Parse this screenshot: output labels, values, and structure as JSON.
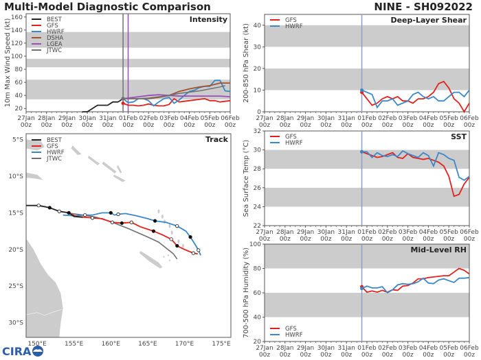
{
  "header": {
    "title": "Multi-Model Diagnostic Comparison",
    "storm": "NINE - SH092022",
    "logo_text": "CIRA"
  },
  "colors": {
    "BEST": "#222222",
    "GFS": "#e3201b",
    "HWRF": "#3a87c8",
    "DSHA": "#a0522d",
    "LGEA": "#9b4fb5",
    "JTWC": "#707070",
    "band": "#cccccc",
    "init_line": "#8aa0c8",
    "land": "#cccccc"
  },
  "x_axis": {
    "days": 10,
    "tick_labels": [
      "27Jan\n00z",
      "28Jan\n00z",
      "29Jan\n00z",
      "30Jan\n00z",
      "31Jan\n00z",
      "01Feb\n00z",
      "02Feb\n00z",
      "03Feb\n00z",
      "04Feb\n00z",
      "05Feb\n00z",
      "06Feb\n00z"
    ]
  },
  "chart_data": [
    {
      "id": "intensity",
      "type": "line",
      "title": "Intensity",
      "ylabel": "10m Max Wind Speed (kt)",
      "xlabel": "",
      "ylim": [
        15,
        165
      ],
      "yticks": [
        20,
        40,
        60,
        80,
        100,
        120,
        140,
        160
      ],
      "bands": [
        [
          34,
          64
        ],
        [
          83,
          96
        ],
        [
          113,
          137
        ]
      ],
      "legend": "top-left",
      "vlines": [
        {
          "x": 4.75,
          "color": "JTWC"
        },
        {
          "x": 5.0,
          "color": "LGEA"
        }
      ],
      "series": [
        {
          "name": "BEST",
          "x": [
            2.75,
            3.0,
            3.25,
            3.5,
            3.75,
            4.0,
            4.25,
            4.5,
            4.75
          ],
          "y": [
            15,
            15,
            20,
            25,
            25,
            25,
            30,
            30,
            35
          ]
        },
        {
          "name": "GFS",
          "x": [
            4.75,
            5.0,
            5.25,
            5.5,
            5.75,
            6.0,
            6.25,
            6.5,
            6.75,
            7.0,
            7.25,
            7.5,
            7.75,
            8.0,
            8.25,
            8.5,
            8.75,
            9.0,
            9.25,
            9.5,
            9.75,
            10.0
          ],
          "y": [
            28,
            25,
            25,
            24,
            25,
            27,
            25,
            24,
            24,
            26,
            35,
            30,
            31,
            32,
            33,
            34,
            35,
            32,
            32,
            30,
            31,
            32
          ]
        },
        {
          "name": "HWRF",
          "x": [
            4.75,
            5.0,
            5.25,
            5.5,
            5.75,
            6.0,
            6.25,
            6.5,
            6.75,
            7.0,
            7.25,
            7.5,
            7.75,
            8.0,
            8.25,
            8.5,
            8.75,
            9.0,
            9.25,
            9.5,
            9.75,
            10.0
          ],
          "y": [
            35,
            29,
            30,
            35,
            35,
            32,
            24,
            30,
            35,
            37,
            28,
            33,
            40,
            46,
            48,
            52,
            54,
            54,
            63,
            63,
            47,
            46
          ]
        },
        {
          "name": "DSHA",
          "x": [
            4.75,
            5.5,
            6.0,
            6.5,
            7.0,
            7.5,
            8.0,
            8.5,
            9.0,
            9.5,
            10.0
          ],
          "y": [
            35,
            35,
            35,
            37,
            40,
            46,
            50,
            53,
            55,
            59,
            59
          ]
        },
        {
          "name": "LGEA",
          "x": [
            4.75,
            5.5,
            6.0,
            6.5,
            7.0,
            7.5,
            8.0,
            8.5,
            9.0,
            9.5,
            10.0
          ],
          "y": [
            35,
            38,
            40,
            41,
            40,
            39,
            39,
            39,
            39,
            39,
            38
          ]
        },
        {
          "name": "JTWC",
          "x": [
            4.75,
            5.0,
            5.5,
            6.0,
            6.5,
            7.0,
            7.5,
            8.0,
            8.5,
            9.0,
            9.5,
            9.75
          ],
          "y": [
            35,
            35,
            35,
            36,
            38,
            40,
            43,
            45,
            47,
            50,
            53,
            55
          ]
        }
      ]
    },
    {
      "id": "shear",
      "type": "line",
      "title": "Deep-Layer Shear",
      "ylabel": "200-850 hPa Shear (kt)",
      "xlabel": "",
      "ylim": [
        0,
        45
      ],
      "yticks": [
        0,
        10,
        20,
        30,
        40
      ],
      "bands": [
        [
          10,
          20
        ],
        [
          30,
          40
        ]
      ],
      "legend": "top-left",
      "vlines": [
        {
          "x": 4.75,
          "color": "init_line"
        }
      ],
      "series": [
        {
          "name": "GFS",
          "x": [
            4.75,
            5.0,
            5.25,
            5.5,
            5.75,
            6.0,
            6.25,
            6.5,
            6.75,
            7.0,
            7.25,
            7.5,
            7.75,
            8.0,
            8.25,
            8.5,
            8.75,
            9.0,
            9.25,
            9.5,
            9.75,
            10.0
          ],
          "y": [
            9,
            6,
            3,
            4,
            6,
            7,
            6,
            7,
            5,
            5,
            4,
            6,
            6,
            7,
            9,
            13,
            14,
            11,
            6,
            4,
            0,
            4
          ]
        },
        {
          "name": "HWRF",
          "x": [
            4.75,
            5.0,
            5.25,
            5.5,
            5.75,
            6.0,
            6.25,
            6.5,
            6.75,
            7.0,
            7.25,
            7.5,
            7.75,
            8.0,
            8.25,
            8.5,
            8.75,
            9.0,
            9.25,
            9.5,
            9.75,
            10.0
          ],
          "y": [
            10,
            9,
            8,
            2,
            5,
            5,
            6,
            3,
            4,
            5,
            8,
            9,
            7,
            6,
            7,
            5,
            5,
            7,
            9,
            9,
            7,
            10
          ]
        }
      ]
    },
    {
      "id": "sst",
      "type": "line",
      "title": "SST",
      "ylabel": "Sea Surface Temp (°C)",
      "xlabel": "",
      "ylim": [
        22,
        32
      ],
      "yticks": [
        22,
        24,
        26,
        28,
        30,
        32
      ],
      "bands": [
        [
          24,
          26
        ],
        [
          28,
          30
        ],
        [
          32,
          33
        ]
      ],
      "legend": "top-left",
      "vlines": [
        {
          "x": 4.75,
          "color": "init_line"
        }
      ],
      "series": [
        {
          "name": "GFS",
          "x": [
            4.75,
            5.0,
            5.25,
            5.5,
            5.75,
            6.0,
            6.25,
            6.5,
            6.75,
            7.0,
            7.25,
            7.5,
            7.75,
            8.0,
            8.25,
            8.5,
            8.75,
            9.0,
            9.25,
            9.5,
            9.75,
            10.0
          ],
          "y": [
            29.8,
            29.6,
            29.4,
            29.2,
            29.3,
            29.5,
            29.7,
            29.2,
            29.1,
            29.6,
            29.2,
            29.1,
            29.0,
            29.1,
            28.9,
            28.7,
            28.3,
            27.2,
            25.1,
            25.3,
            26.4,
            27.1
          ]
        },
        {
          "name": "HWRF",
          "x": [
            4.75,
            5.0,
            5.25,
            5.5,
            5.75,
            6.0,
            6.25,
            6.5,
            6.75,
            7.0,
            7.25,
            7.5,
            7.75,
            8.0,
            8.25,
            8.5,
            8.75,
            9.0,
            9.25,
            9.5,
            9.75,
            10.0
          ],
          "y": [
            29.8,
            29.8,
            29.2,
            29.7,
            29.4,
            29.3,
            29.5,
            29.3,
            29.9,
            29.6,
            29.4,
            29.2,
            29.7,
            29.4,
            28.3,
            29.7,
            29.5,
            29.1,
            28.9,
            27.1,
            26.8,
            27.2
          ]
        }
      ]
    },
    {
      "id": "rh",
      "type": "line",
      "title": "Mid-Level RH",
      "ylabel": "700-500 hPa Humidity (%)",
      "xlabel": "",
      "ylim": [
        20,
        100
      ],
      "yticks": [
        20,
        40,
        60,
        80,
        100
      ],
      "bands": [
        [
          40,
          60
        ],
        [
          80,
          100
        ]
      ],
      "legend": "bottom-left",
      "vlines": [
        {
          "x": 4.75,
          "color": "init_line"
        }
      ],
      "series": [
        {
          "name": "GFS",
          "x": [
            4.75,
            5.0,
            5.25,
            5.5,
            5.75,
            6.0,
            6.25,
            6.5,
            6.75,
            7.0,
            7.25,
            7.5,
            7.75,
            8.0,
            8.25,
            8.5,
            8.75,
            9.0,
            9.25,
            9.5,
            9.75,
            10.0
          ],
          "y": [
            65,
            60.5,
            61.5,
            60.5,
            62,
            60.5,
            62.5,
            62,
            65.5,
            66,
            68,
            71.5,
            71.5,
            72.5,
            73,
            73.5,
            74,
            74,
            77,
            80,
            78.5,
            75.5
          ]
        },
        {
          "name": "HWRF",
          "x": [
            4.75,
            5.0,
            5.25,
            5.5,
            5.75,
            6.0,
            6.25,
            6.5,
            6.75,
            7.0,
            7.25,
            7.5,
            7.75,
            8.0,
            8.25,
            8.5,
            8.75,
            9.0,
            9.25,
            9.5,
            9.75,
            10.0
          ],
          "y": [
            63.5,
            65.5,
            64,
            64,
            65,
            60,
            62.5,
            66.5,
            67.5,
            67,
            67.5,
            69,
            72,
            68,
            67.5,
            70.5,
            71.5,
            70,
            68.5,
            72,
            72,
            72.5
          ]
        }
      ]
    },
    {
      "id": "track",
      "type": "scatter",
      "title": "Track",
      "lon_range": [
        148.5,
        176.3
      ],
      "lat_range": [
        -32,
        -4.2
      ],
      "lon_ticks": [
        "150°E",
        "155°E",
        "160°E",
        "165°E",
        "170°E",
        "175°E"
      ],
      "lon_tick_values": [
        150,
        155,
        160,
        165,
        170,
        175
      ],
      "lat_ticks": [
        "5°S",
        "10°S",
        "15°S",
        "20°S",
        "25°S",
        "30°S"
      ],
      "lat_tick_values": [
        -5,
        -10,
        -15,
        -20,
        -25,
        -30
      ],
      "legend": "top-left",
      "series": [
        {
          "name": "BEST",
          "lon": [
            148.5,
            150.2,
            151.7,
            153.0,
            154.3,
            155.0,
            156.2
          ],
          "lat": [
            -14.0,
            -14.0,
            -14.3,
            -14.8,
            -15.0,
            -15.5,
            -15.6
          ],
          "markers": [
            {
              "i": 1,
              "fill": "open"
            },
            {
              "i": 2,
              "fill": "solid"
            },
            {
              "i": 3,
              "fill": "open"
            },
            {
              "i": 4,
              "fill": "solid"
            }
          ]
        },
        {
          "name": "GFS",
          "lon": [
            154.3,
            155.3,
            156.5,
            157.5,
            158.8,
            160.2,
            161.5,
            162.8,
            164.0,
            165.8,
            167.0,
            168.2,
            169.0,
            170.0,
            171.2,
            171.8
          ],
          "lat": [
            -15.0,
            -15.5,
            -15.6,
            -15.7,
            -15.8,
            -16.3,
            -16.4,
            -16.3,
            -16.9,
            -17.5,
            -18.0,
            -18.6,
            -19.5,
            -20.0,
            -20.5,
            -20.6
          ],
          "markers": [
            {
              "i": 3,
              "fill": "open"
            },
            {
              "i": 5,
              "fill": "open"
            },
            {
              "i": 6,
              "fill": "solid"
            },
            {
              "i": 7,
              "fill": "open"
            },
            {
              "i": 9,
              "fill": "solid"
            },
            {
              "i": 11,
              "fill": "open"
            },
            {
              "i": 12,
              "fill": "solid"
            },
            {
              "i": 14,
              "fill": "open"
            }
          ]
        },
        {
          "name": "HWRF",
          "lon": [
            153.5,
            155.0,
            156.5,
            157.5,
            158.8,
            160.0,
            160.5,
            161.0,
            162.0,
            163.5,
            165.0,
            166.0,
            167.5,
            169.0,
            170.2,
            170.8,
            171.5,
            171.9,
            172.2
          ],
          "lat": [
            -15.3,
            -15.4,
            -15.3,
            -15.3,
            -15.0,
            -15.0,
            -15.3,
            -15.2,
            -15.1,
            -15.4,
            -15.8,
            -16.1,
            -16.3,
            -16.8,
            -17.5,
            -18.3,
            -19.4,
            -20.1,
            -20.8
          ],
          "markers": [
            {
              "i": 2,
              "fill": "open"
            },
            {
              "i": 5,
              "fill": "solid"
            },
            {
              "i": 7,
              "fill": "open"
            },
            {
              "i": 11,
              "fill": "solid"
            },
            {
              "i": 13,
              "fill": "open"
            },
            {
              "i": 15,
              "fill": "solid"
            },
            {
              "i": 17,
              "fill": "open"
            }
          ]
        },
        {
          "name": "JTWC",
          "lon": [
            154.0,
            156.2,
            158.0,
            160.0,
            162.5,
            165.0,
            166.5,
            168.5,
            169.0
          ],
          "lat": [
            -15.0,
            -15.3,
            -15.6,
            -16.2,
            -17.2,
            -18.3,
            -19.0,
            -20.6,
            -21.3
          ],
          "markers": []
        }
      ]
    }
  ]
}
